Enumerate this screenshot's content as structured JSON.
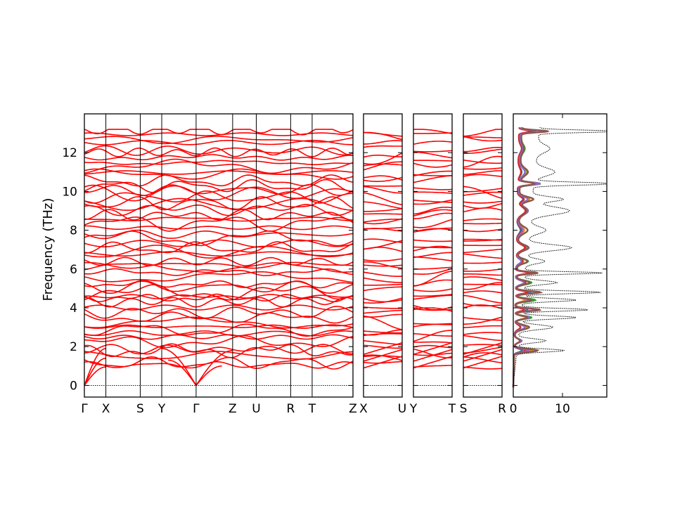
{
  "chart_data": {
    "type": "line",
    "ylabel": "Frequency (THz)",
    "ylim": [
      -0.6,
      14.0
    ],
    "yticks": [
      0,
      2,
      4,
      6,
      8,
      10,
      12
    ],
    "band_color": "#ff0000",
    "zero_line_color": "#0000cc",
    "panels": [
      {
        "kind": "band",
        "labels": [
          "Γ",
          "X",
          "S",
          "Y",
          "Γ",
          "Z",
          "U",
          "R",
          "T",
          "Z"
        ],
        "label_positions": [
          0,
          1,
          2.6,
          3.6,
          5.2,
          6.9,
          8.0,
          9.6,
          10.6,
          12.5
        ]
      },
      {
        "kind": "band",
        "labels": [
          "X",
          "U"
        ],
        "label_positions": [
          0,
          1
        ]
      },
      {
        "kind": "band",
        "labels": [
          "Y",
          "T"
        ],
        "label_positions": [
          0,
          1
        ]
      },
      {
        "kind": "band",
        "labels": [
          "S",
          "R"
        ],
        "label_positions": [
          0,
          1
        ]
      },
      {
        "kind": "dos",
        "xlim": [
          0,
          19
        ],
        "xticks": [
          0,
          10
        ],
        "xtick_labels": [
          "0",
          "10"
        ],
        "total_color": "#000000",
        "partial_colors": [
          "#1f77b4",
          "#ff7f0e",
          "#2ca02c",
          "#d62728",
          "#9467bd",
          "#8c564b"
        ]
      }
    ]
  }
}
